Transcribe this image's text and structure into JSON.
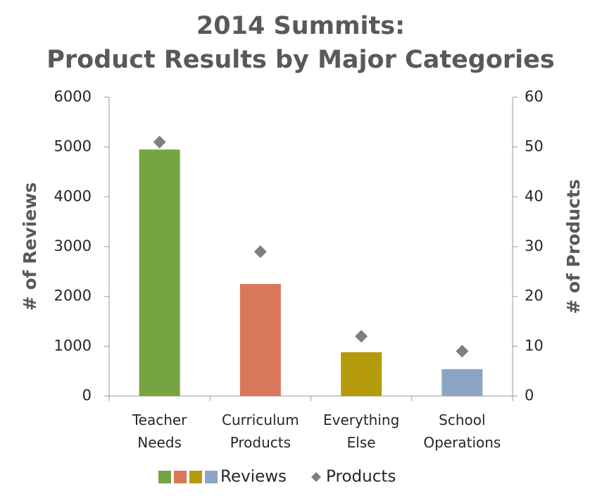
{
  "chart_data": {
    "type": "bar",
    "title": "2014 Summits:",
    "subtitle": "Product Results by Major Categories",
    "y_label": "# of Reviews",
    "y2_label": "# of Products",
    "categories": [
      "Teacher Needs",
      "Curriculum Products",
      "Everything Else",
      "School Operations"
    ],
    "series": [
      {
        "name": "Reviews",
        "type": "bar",
        "colors": [
          "#77a442",
          "#d9775a",
          "#b59a0a",
          "#8ea4c4"
        ],
        "values": [
          4950,
          2250,
          880,
          540
        ]
      },
      {
        "name": "Products",
        "type": "scatter",
        "marker": "diamond",
        "color": "#7f7f7f",
        "axis": "y2",
        "values": [
          51,
          29,
          12,
          9
        ]
      }
    ],
    "ylim": [
      0,
      6000
    ],
    "yticks": [
      0,
      1000,
      2000,
      3000,
      4000,
      5000,
      6000
    ],
    "y2lim": [
      0,
      60
    ],
    "y2ticks": [
      0,
      10,
      20,
      30,
      40,
      50,
      60
    ],
    "grid": false,
    "legend": "bottom"
  }
}
